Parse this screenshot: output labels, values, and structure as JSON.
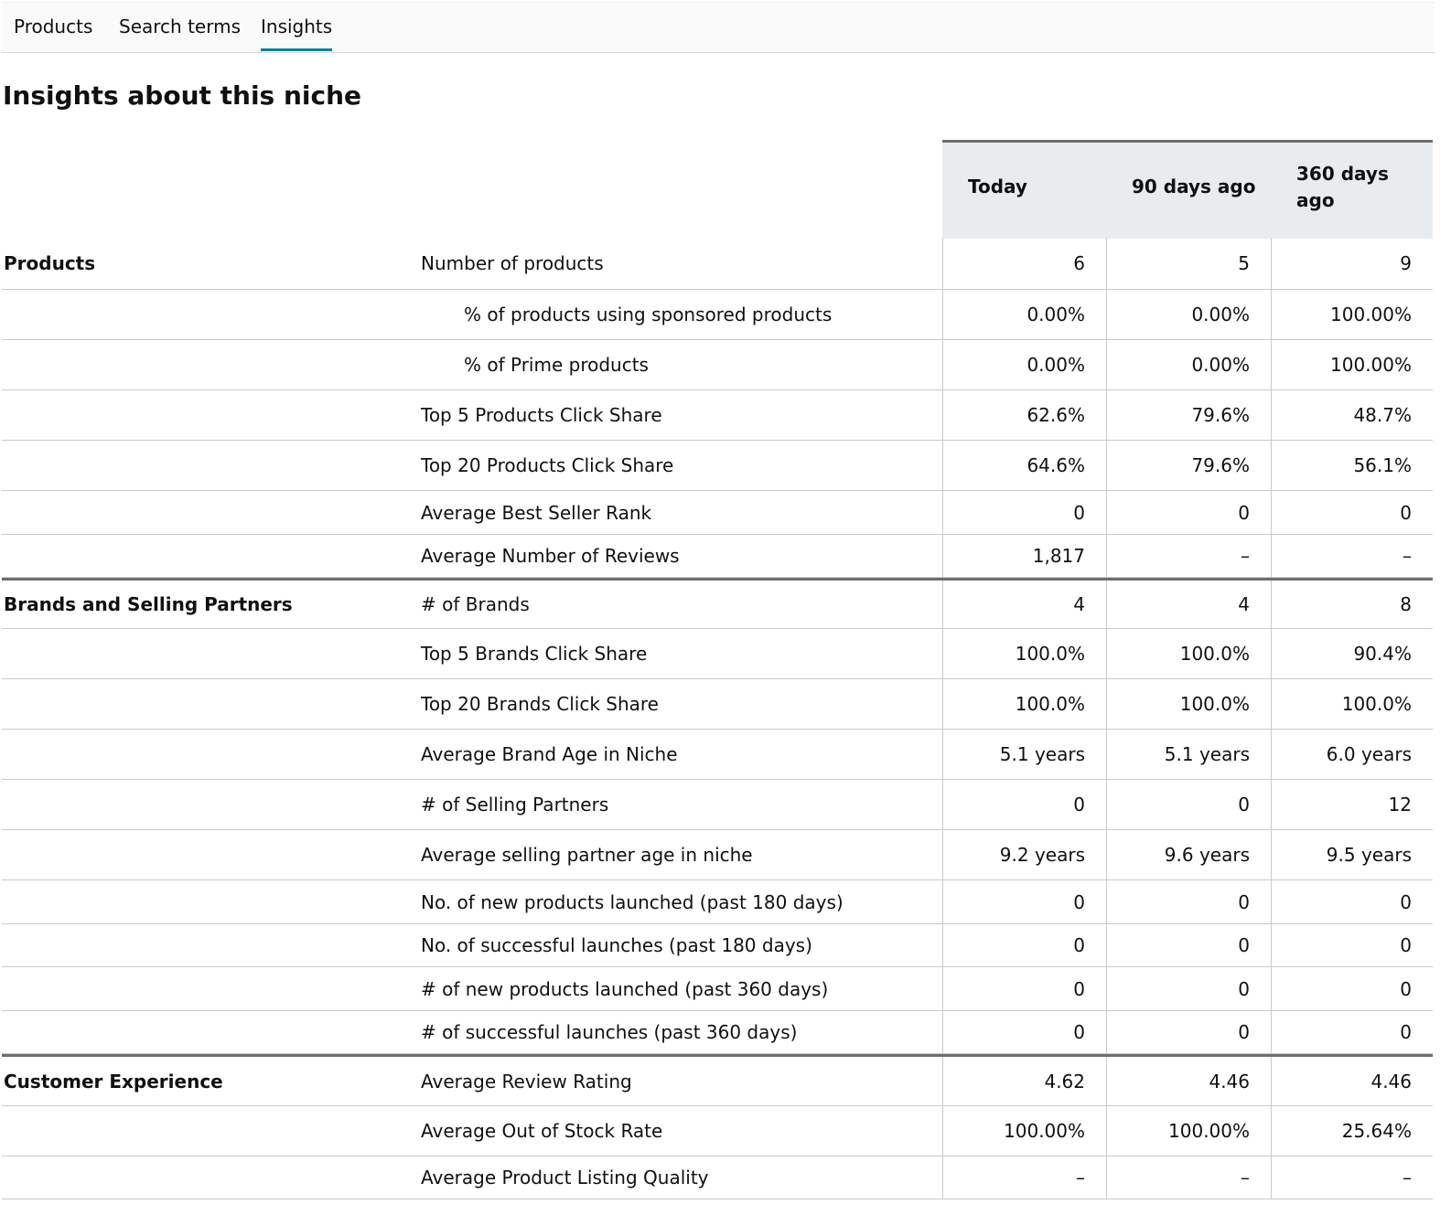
{
  "tabs": [
    {
      "label": "Products"
    },
    {
      "label": "Search terms"
    },
    {
      "label": "Insights",
      "active": true
    }
  ],
  "page_title": "Insights about this niche",
  "columns": {
    "today": "Today",
    "d90": "90 days ago",
    "d360": "360 days ago"
  },
  "sections": [
    {
      "label": "Products",
      "rows": [
        {
          "metric": "Number of products",
          "today": "6",
          "d90": "5",
          "d360": "9"
        },
        {
          "metric": "% of products using sponsored products",
          "indent": true,
          "today": "0.00%",
          "d90": "0.00%",
          "d360": "100.00%"
        },
        {
          "metric": "% of Prime products",
          "indent": true,
          "today": "0.00%",
          "d90": "0.00%",
          "d360": "100.00%"
        },
        {
          "metric": "Top 5 Products Click Share",
          "today": "62.6%",
          "d90": "79.6%",
          "d360": "48.7%"
        },
        {
          "metric": "Top 20 Products Click Share",
          "today": "64.6%",
          "d90": "79.6%",
          "d360": "56.1%"
        },
        {
          "metric": "Average Best Seller Rank",
          "today": "0",
          "d90": "0",
          "d360": "0"
        },
        {
          "metric": "Average Number of Reviews",
          "today": "1,817",
          "d90": "–",
          "d360": "–"
        }
      ]
    },
    {
      "label": "Brands and Selling Partners",
      "rows": [
        {
          "metric": "# of Brands",
          "today": "4",
          "d90": "4",
          "d360": "8"
        },
        {
          "metric": "Top 5 Brands Click Share",
          "today": "100.0%",
          "d90": "100.0%",
          "d360": "90.4%"
        },
        {
          "metric": "Top 20 Brands Click Share",
          "today": "100.0%",
          "d90": "100.0%",
          "d360": "100.0%"
        },
        {
          "metric": "Average Brand Age in Niche",
          "today": "5.1 years",
          "d90": "5.1 years",
          "d360": "6.0 years"
        },
        {
          "metric": "# of Selling Partners",
          "today": "0",
          "d90": "0",
          "d360": "12"
        },
        {
          "metric": "Average selling partner age in niche",
          "today": "9.2 years",
          "d90": "9.6 years",
          "d360": "9.5 years"
        },
        {
          "metric": "No. of new products launched (past 180 days)",
          "today": "0",
          "d90": "0",
          "d360": "0"
        },
        {
          "metric": "No. of successful launches (past 180 days)",
          "today": "0",
          "d90": "0",
          "d360": "0"
        },
        {
          "metric": "# of new products launched (past 360 days)",
          "today": "0",
          "d90": "0",
          "d360": "0"
        },
        {
          "metric": "# of successful launches (past 360 days)",
          "today": "0",
          "d90": "0",
          "d360": "0"
        }
      ]
    },
    {
      "label": "Customer Experience",
      "rows": [
        {
          "metric": "Average Review Rating",
          "today": "4.62",
          "d90": "4.46",
          "d360": "4.46"
        },
        {
          "metric": "Average Out of Stock Rate",
          "today": "100.00%",
          "d90": "100.00%",
          "d360": "25.64%"
        },
        {
          "metric": "Average Product Listing Quality",
          "today": "–",
          "d90": "–",
          "d360": "–"
        }
      ]
    }
  ]
}
